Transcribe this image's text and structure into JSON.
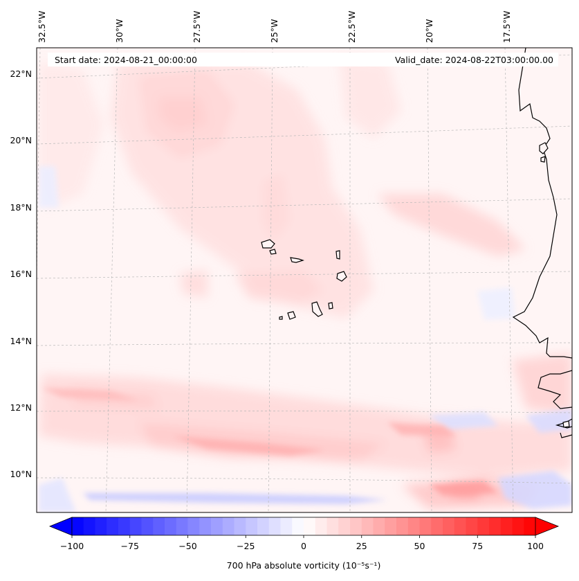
{
  "map": {
    "start_date": "Start date: 2024-08-21_00:00:00",
    "valid_date": "Valid_date: 2024-08-22T03:00:00.00",
    "longitude_labels": [
      "32.5°W",
      "30°W",
      "27.5°W",
      "25°W",
      "22.5°W",
      "20°W",
      "17.5°W"
    ],
    "latitude_labels": [
      "22°N",
      "20°N",
      "18°N",
      "16°N",
      "14°N",
      "12°N",
      "10°N"
    ],
    "colorbar": {
      "ticks": [
        "−100",
        "−75",
        "−50",
        "−25",
        "0",
        "25",
        "50",
        "75",
        "100"
      ],
      "label": "700 hPa absolute vorticity (10⁻⁵s⁻¹)",
      "min": -100,
      "max": 100,
      "neg_color": "#0000ff",
      "pos_color": "#ff0000"
    }
  }
}
